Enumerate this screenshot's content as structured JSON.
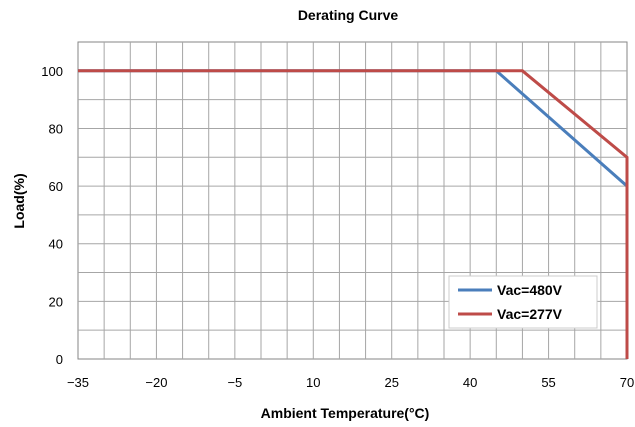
{
  "chart_data": {
    "type": "line",
    "title": "Derating Curve",
    "xlabel": "Ambient Temperature(°C)",
    "ylabel": "Load(%)",
    "xlim": [
      -35,
      70
    ],
    "ylim": [
      0,
      110
    ],
    "x_ticks": [
      -35,
      -20,
      -5,
      10,
      25,
      40,
      55,
      70
    ],
    "x_tick_labels": [
      "−35",
      "−20",
      "−5",
      "10",
      "25",
      "40",
      "55",
      "70"
    ],
    "y_ticks": [
      0,
      20,
      40,
      60,
      80,
      100
    ],
    "y_tick_labels": [
      "0",
      "20",
      "40",
      "60",
      "80",
      "100"
    ],
    "grid": true,
    "legend_position": "bottom-right",
    "series": [
      {
        "name": "Vac=480V",
        "color": "#4a7ebb",
        "points": [
          [
            -35,
            100
          ],
          [
            45,
            100
          ],
          [
            70,
            60
          ],
          [
            70,
            0
          ]
        ]
      },
      {
        "name": "Vac=277V",
        "color": "#be4b48",
        "points": [
          [
            -35,
            100
          ],
          [
            50,
            100
          ],
          [
            70,
            70
          ],
          [
            70,
            0
          ]
        ]
      }
    ]
  }
}
